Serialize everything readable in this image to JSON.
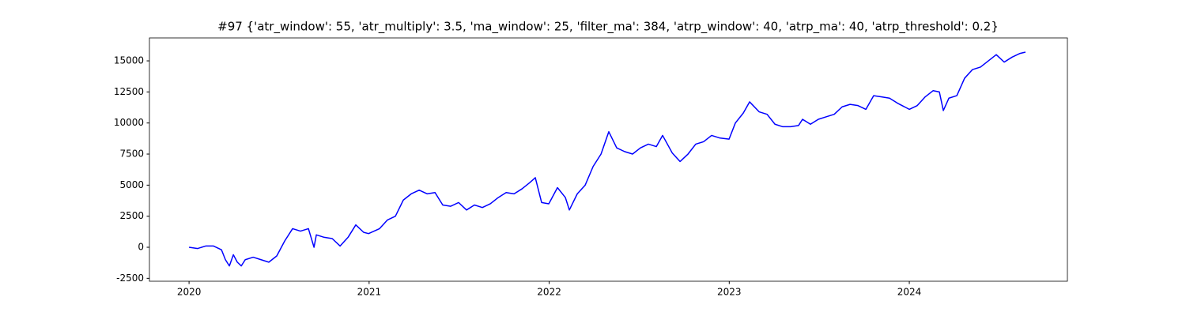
{
  "chart_data": {
    "type": "line",
    "title": "#97 {'atr_window': 55, 'atr_multiply': 3.5, 'ma_window': 25, 'filter_ma': 384, 'atrp_window': 40, 'atrp_ma': 40, 'atrp_threshold': 0.2}",
    "x": [
      2020.0,
      2020.048,
      2020.092,
      2020.136,
      2020.18,
      2020.202,
      2020.224,
      2020.246,
      2020.268,
      2020.29,
      2020.312,
      2020.356,
      2020.4,
      2020.443,
      2020.487,
      2020.531,
      2020.575,
      2020.619,
      2020.663,
      2020.694,
      2020.707,
      2020.751,
      2020.795,
      2020.839,
      2020.883,
      2020.926,
      2020.97,
      2020.997,
      2021.058,
      2021.102,
      2021.146,
      2021.19,
      2021.234,
      2021.278,
      2021.322,
      2021.366,
      2021.409,
      2021.453,
      2021.497,
      2021.541,
      2021.585,
      2021.629,
      2021.673,
      2021.717,
      2021.761,
      2021.805,
      2021.849,
      2021.892,
      2021.923,
      2021.958,
      2021.998,
      2022.046,
      2022.09,
      2022.112,
      2022.156,
      2022.2,
      2022.244,
      2022.288,
      2022.331,
      2022.375,
      2022.419,
      2022.463,
      2022.507,
      2022.551,
      2022.595,
      2022.63,
      2022.683,
      2022.727,
      2022.771,
      2022.814,
      2022.858,
      2022.902,
      2022.946,
      2022.999,
      2023.034,
      2023.078,
      2023.113,
      2023.166,
      2023.21,
      2023.254,
      2023.297,
      2023.341,
      2023.385,
      2023.407,
      2023.451,
      2023.495,
      2023.539,
      2023.583,
      2023.627,
      2023.671,
      2023.715,
      2023.759,
      2023.802,
      2023.846,
      2023.89,
      2023.934,
      2024.0,
      2024.044,
      2024.088,
      2024.132,
      2024.167,
      2024.189,
      2024.22,
      2024.264,
      2024.307,
      2024.351,
      2024.395,
      2024.439,
      2024.483,
      2024.527,
      2024.571,
      2024.615,
      2024.645
    ],
    "series": [
      {
        "color": "#0000ff",
        "values": [
          0,
          -100,
          100,
          100,
          -200,
          -1000,
          -1500,
          -600,
          -1200,
          -1500,
          -1000,
          -800,
          -1000,
          -1200,
          -700,
          500,
          1500,
          1300,
          1500,
          0,
          1000,
          800,
          700,
          100,
          800,
          1800,
          1200,
          1100,
          1500,
          2200,
          2500,
          3800,
          4300,
          4600,
          4300,
          4400,
          3400,
          3300,
          3600,
          3000,
          3400,
          3200,
          3500,
          4000,
          4400,
          4300,
          4700,
          5200,
          5600,
          3600,
          3500,
          4800,
          4000,
          3000,
          4300,
          5000,
          6500,
          7500,
          9300,
          8000,
          7700,
          7500,
          8000,
          8300,
          8100,
          9000,
          7600,
          6900,
          7500,
          8300,
          8500,
          9000,
          8800,
          8700,
          10000,
          10800,
          11700,
          10900,
          10700,
          9900,
          9700,
          9700,
          9800,
          10300,
          9900,
          10300,
          10500,
          10700,
          11300,
          11500,
          11400,
          11100,
          12200,
          12100,
          12000,
          11600,
          11100,
          11400,
          12100,
          12600,
          12500,
          11000,
          12000,
          12200,
          13600,
          14300,
          14500,
          15000,
          15500,
          14900,
          15300,
          15600,
          15700
        ]
      }
    ],
    "xlim": [
      2019.78,
      2024.878
    ],
    "xticks": [
      2020,
      2021,
      2022,
      2023,
      2024
    ],
    "ylim": [
      -2733,
      16846
    ],
    "yticks": [
      -2500,
      0,
      2500,
      5000,
      7500,
      10000,
      12500,
      15000
    ],
    "grid": false
  }
}
